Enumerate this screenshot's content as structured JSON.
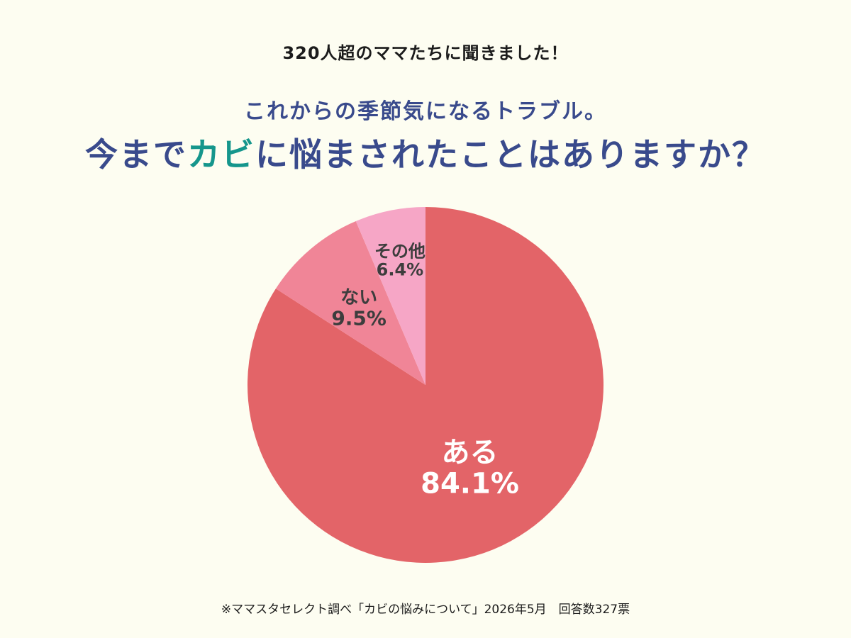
{
  "header": {
    "kicker": "320人超のママたちに聞きました！",
    "subtitle": "これからの季節気になるトラブル。",
    "title_part1": "今まで",
    "title_highlight": "カビ",
    "title_part2": "に悩まされたことはありますか？"
  },
  "chart_data": {
    "type": "pie",
    "categories": [
      "ある",
      "ない",
      "その他"
    ],
    "values": [
      84.1,
      9.5,
      6.4
    ],
    "value_labels": [
      "84.1%",
      "9.5%",
      "6.4%"
    ],
    "colors": [
      "#e36468",
      "#f08597",
      "#f6a6c6"
    ],
    "label_colors": [
      "#ffffff",
      "#3d3d3d",
      "#3d3d3d"
    ],
    "start": "12 o'clock, clockwise"
  },
  "footnote": "※ママスタセレクト調べ「カビの悩みについて」2026年5月　回答数327票"
}
